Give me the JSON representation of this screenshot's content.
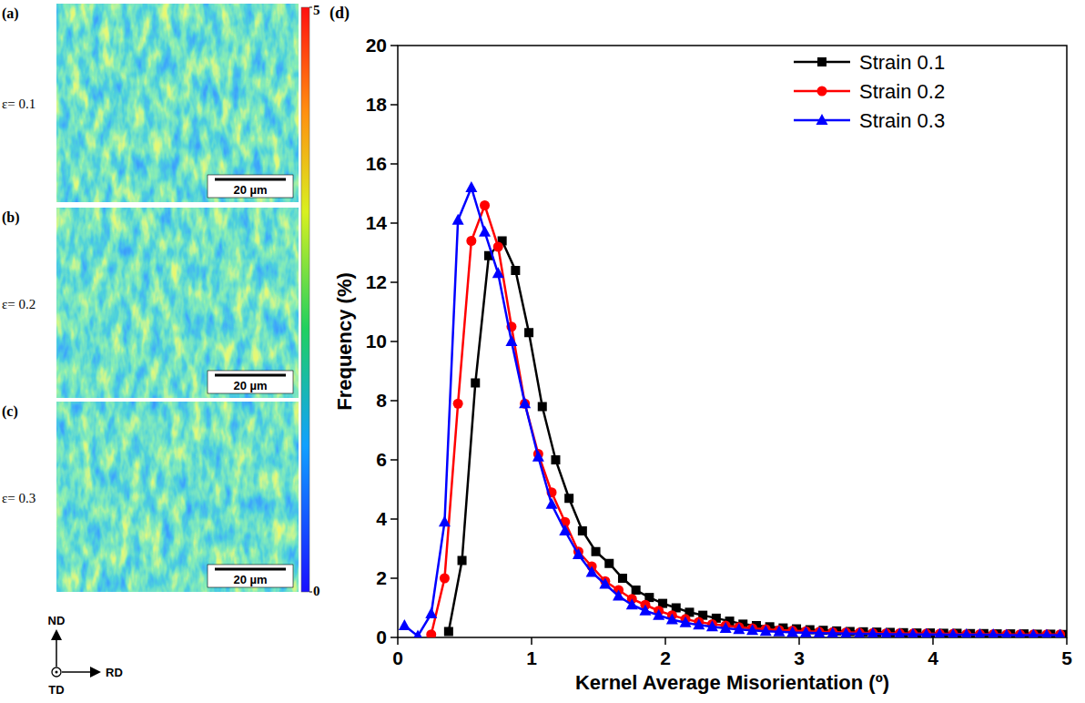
{
  "chart_data": [
    {
      "type": "line",
      "panel": "(d)",
      "x_label": "Kernel Average Misorientation (º)",
      "y_label": "Frequency (%)",
      "xlim": [
        0,
        5
      ],
      "xticks": [
        0,
        1,
        2,
        3,
        4,
        5
      ],
      "ylim": [
        0,
        20
      ],
      "yticks": [
        0,
        2,
        4,
        6,
        8,
        10,
        12,
        14,
        16,
        18,
        20
      ],
      "grid": false,
      "legend": "upper right",
      "series": [
        {
          "name": "Strain 0.1",
          "color": "#000000",
          "marker": "square",
          "line_style": "solid",
          "x": [
            0.38,
            0.48,
            0.58,
            0.68,
            0.78,
            0.88,
            0.98,
            1.08,
            1.18,
            1.28,
            1.38,
            1.48,
            1.58,
            1.68,
            1.78,
            1.88,
            1.98,
            2.08,
            2.18,
            2.28,
            2.38,
            2.48,
            2.58,
            2.68,
            2.78,
            2.88,
            2.98,
            3.08,
            3.18,
            3.28,
            3.38,
            3.48,
            3.58,
            3.68,
            3.78,
            3.88,
            3.98,
            4.08,
            4.18,
            4.28,
            4.38,
            4.48,
            4.58,
            4.68,
            4.78,
            4.88,
            4.98
          ],
          "values": [
            0.2,
            2.6,
            8.6,
            12.9,
            13.4,
            12.4,
            10.3,
            7.8,
            6.0,
            4.7,
            3.6,
            2.9,
            2.5,
            2.0,
            1.6,
            1.35,
            1.15,
            1.0,
            0.85,
            0.75,
            0.65,
            0.55,
            0.45,
            0.4,
            0.36,
            0.32,
            0.29,
            0.26,
            0.24,
            0.22,
            0.2,
            0.19,
            0.18,
            0.17,
            0.16,
            0.15,
            0.15,
            0.14,
            0.14,
            0.13,
            0.13,
            0.12,
            0.12,
            0.12,
            0.11,
            0.11,
            0.1
          ]
        },
        {
          "name": "Strain 0.2",
          "color": "#ff0000",
          "marker": "circle",
          "line_style": "solid",
          "x": [
            0.25,
            0.35,
            0.45,
            0.55,
            0.65,
            0.75,
            0.85,
            0.95,
            1.05,
            1.15,
            1.25,
            1.35,
            1.45,
            1.55,
            1.65,
            1.75,
            1.85,
            1.95,
            2.05,
            2.15,
            2.25,
            2.35,
            2.45,
            2.55,
            2.65,
            2.75,
            2.85,
            2.95,
            3.05,
            3.15,
            3.25,
            3.35,
            3.45,
            3.55,
            3.65,
            3.75,
            3.85,
            3.95,
            4.05,
            4.15,
            4.25,
            4.35,
            4.45,
            4.55,
            4.65,
            4.75,
            4.85,
            4.95
          ],
          "values": [
            0.1,
            2.0,
            7.9,
            13.4,
            14.6,
            13.2,
            10.5,
            7.9,
            6.2,
            4.9,
            3.9,
            2.9,
            2.4,
            1.9,
            1.6,
            1.3,
            1.1,
            0.9,
            0.75,
            0.62,
            0.52,
            0.45,
            0.4,
            0.35,
            0.31,
            0.28,
            0.25,
            0.23,
            0.21,
            0.19,
            0.18,
            0.17,
            0.16,
            0.15,
            0.14,
            0.14,
            0.13,
            0.13,
            0.12,
            0.12,
            0.11,
            0.11,
            0.11,
            0.1,
            0.1,
            0.1,
            0.1,
            0.1
          ]
        },
        {
          "name": "Strain 0.3",
          "color": "#0000ff",
          "marker": "triangle",
          "line_style": "solid",
          "x": [
            0.05,
            0.15,
            0.25,
            0.35,
            0.45,
            0.55,
            0.65,
            0.75,
            0.85,
            0.95,
            1.05,
            1.15,
            1.25,
            1.35,
            1.45,
            1.55,
            1.65,
            1.75,
            1.85,
            1.95,
            2.05,
            2.15,
            2.25,
            2.35,
            2.45,
            2.55,
            2.65,
            2.75,
            2.85,
            2.95,
            3.05,
            3.15,
            3.25,
            3.35,
            3.45,
            3.55,
            3.65,
            3.75,
            3.85,
            3.95,
            4.05,
            4.15,
            4.25,
            4.35,
            4.45,
            4.55,
            4.65,
            4.75,
            4.85,
            4.95
          ],
          "values": [
            0.4,
            0.05,
            0.8,
            3.9,
            14.1,
            15.2,
            13.7,
            12.3,
            10.0,
            7.9,
            6.1,
            4.5,
            3.6,
            2.8,
            2.2,
            1.8,
            1.4,
            1.1,
            0.9,
            0.75,
            0.6,
            0.5,
            0.42,
            0.36,
            0.31,
            0.27,
            0.24,
            0.21,
            0.19,
            0.17,
            0.16,
            0.15,
            0.14,
            0.13,
            0.12,
            0.12,
            0.11,
            0.11,
            0.1,
            0.1,
            0.1,
            0.09,
            0.09,
            0.09,
            0.09,
            0.08,
            0.08,
            0.08,
            0.08,
            0.08
          ]
        }
      ]
    },
    {
      "type": "map",
      "panels": [
        {
          "letter": "(a)",
          "label": "ε= 0.1",
          "scale_bar": "20 µm"
        },
        {
          "letter": "(b)",
          "label": "ε= 0.2",
          "scale_bar": "20 µm"
        },
        {
          "letter": "(c)",
          "label": "ε= 0.3",
          "scale_bar": "20 µm"
        }
      ],
      "colorbar_range": [
        0,
        5
      ],
      "colorbar_ticks": [
        0,
        5
      ],
      "directions": [
        "ND",
        "RD",
        "TD"
      ]
    }
  ]
}
